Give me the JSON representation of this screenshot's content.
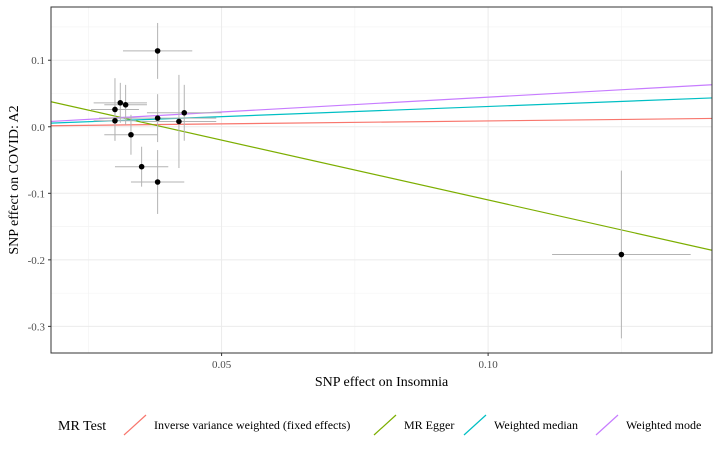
{
  "chart_data": {
    "type": "scatter",
    "title": "",
    "xlabel": "SNP effect on Insomnia",
    "ylabel": "SNP effect on COVID: A2",
    "xlim": [
      0.018,
      0.142
    ],
    "ylim": [
      -0.34,
      0.18
    ],
    "x_ticks": [
      0.05,
      0.1
    ],
    "x_tick_labels": [
      "0.05",
      "0.10"
    ],
    "y_ticks": [
      -0.3,
      -0.2,
      -0.1,
      0.0,
      0.1
    ],
    "y_tick_labels": [
      "-0.3",
      "-0.2",
      "-0.1",
      "0.0",
      "0.1"
    ],
    "grid": true,
    "points": [
      {
        "x": 0.03,
        "y": 0.026,
        "xerr": 0.0045,
        "yerr": 0.047
      },
      {
        "x": 0.03,
        "y": 0.009,
        "xerr": 0.004,
        "yerr": 0.03
      },
      {
        "x": 0.031,
        "y": 0.036,
        "xerr": 0.005,
        "yerr": 0.03
      },
      {
        "x": 0.032,
        "y": 0.033,
        "xerr": 0.004,
        "yerr": 0.03
      },
      {
        "x": 0.033,
        "y": -0.012,
        "xerr": 0.005,
        "yerr": 0.03
      },
      {
        "x": 0.035,
        "y": -0.06,
        "xerr": 0.005,
        "yerr": 0.03
      },
      {
        "x": 0.038,
        "y": 0.114,
        "xerr": 0.0065,
        "yerr": 0.042
      },
      {
        "x": 0.038,
        "y": 0.013,
        "xerr": 0.011,
        "yerr": 0.036
      },
      {
        "x": 0.038,
        "y": -0.083,
        "xerr": 0.005,
        "yerr": 0.048
      },
      {
        "x": 0.042,
        "y": 0.008,
        "xerr": 0.007,
        "yerr": 0.07
      },
      {
        "x": 0.043,
        "y": 0.021,
        "xerr": 0.007,
        "yerr": 0.042
      },
      {
        "x": 0.125,
        "y": -0.192,
        "xerr": 0.013,
        "yerr": 0.126
      }
    ],
    "series": [
      {
        "name": "Inverse variance weighted (fixed effects)",
        "intercept": 0.0,
        "slope": 0.088,
        "color": "#F8766D"
      },
      {
        "name": "MR Egger",
        "intercept": 0.07,
        "slope": -1.8,
        "color": "#7CAE00"
      },
      {
        "name": "Weighted median",
        "intercept": 0.0,
        "slope": 0.305,
        "color": "#00BFC4"
      },
      {
        "name": "Weighted mode",
        "intercept": 0.0,
        "slope": 0.445,
        "color": "#C77CFF"
      }
    ],
    "legend": {
      "title": "MR Test",
      "position": "bottom"
    }
  }
}
